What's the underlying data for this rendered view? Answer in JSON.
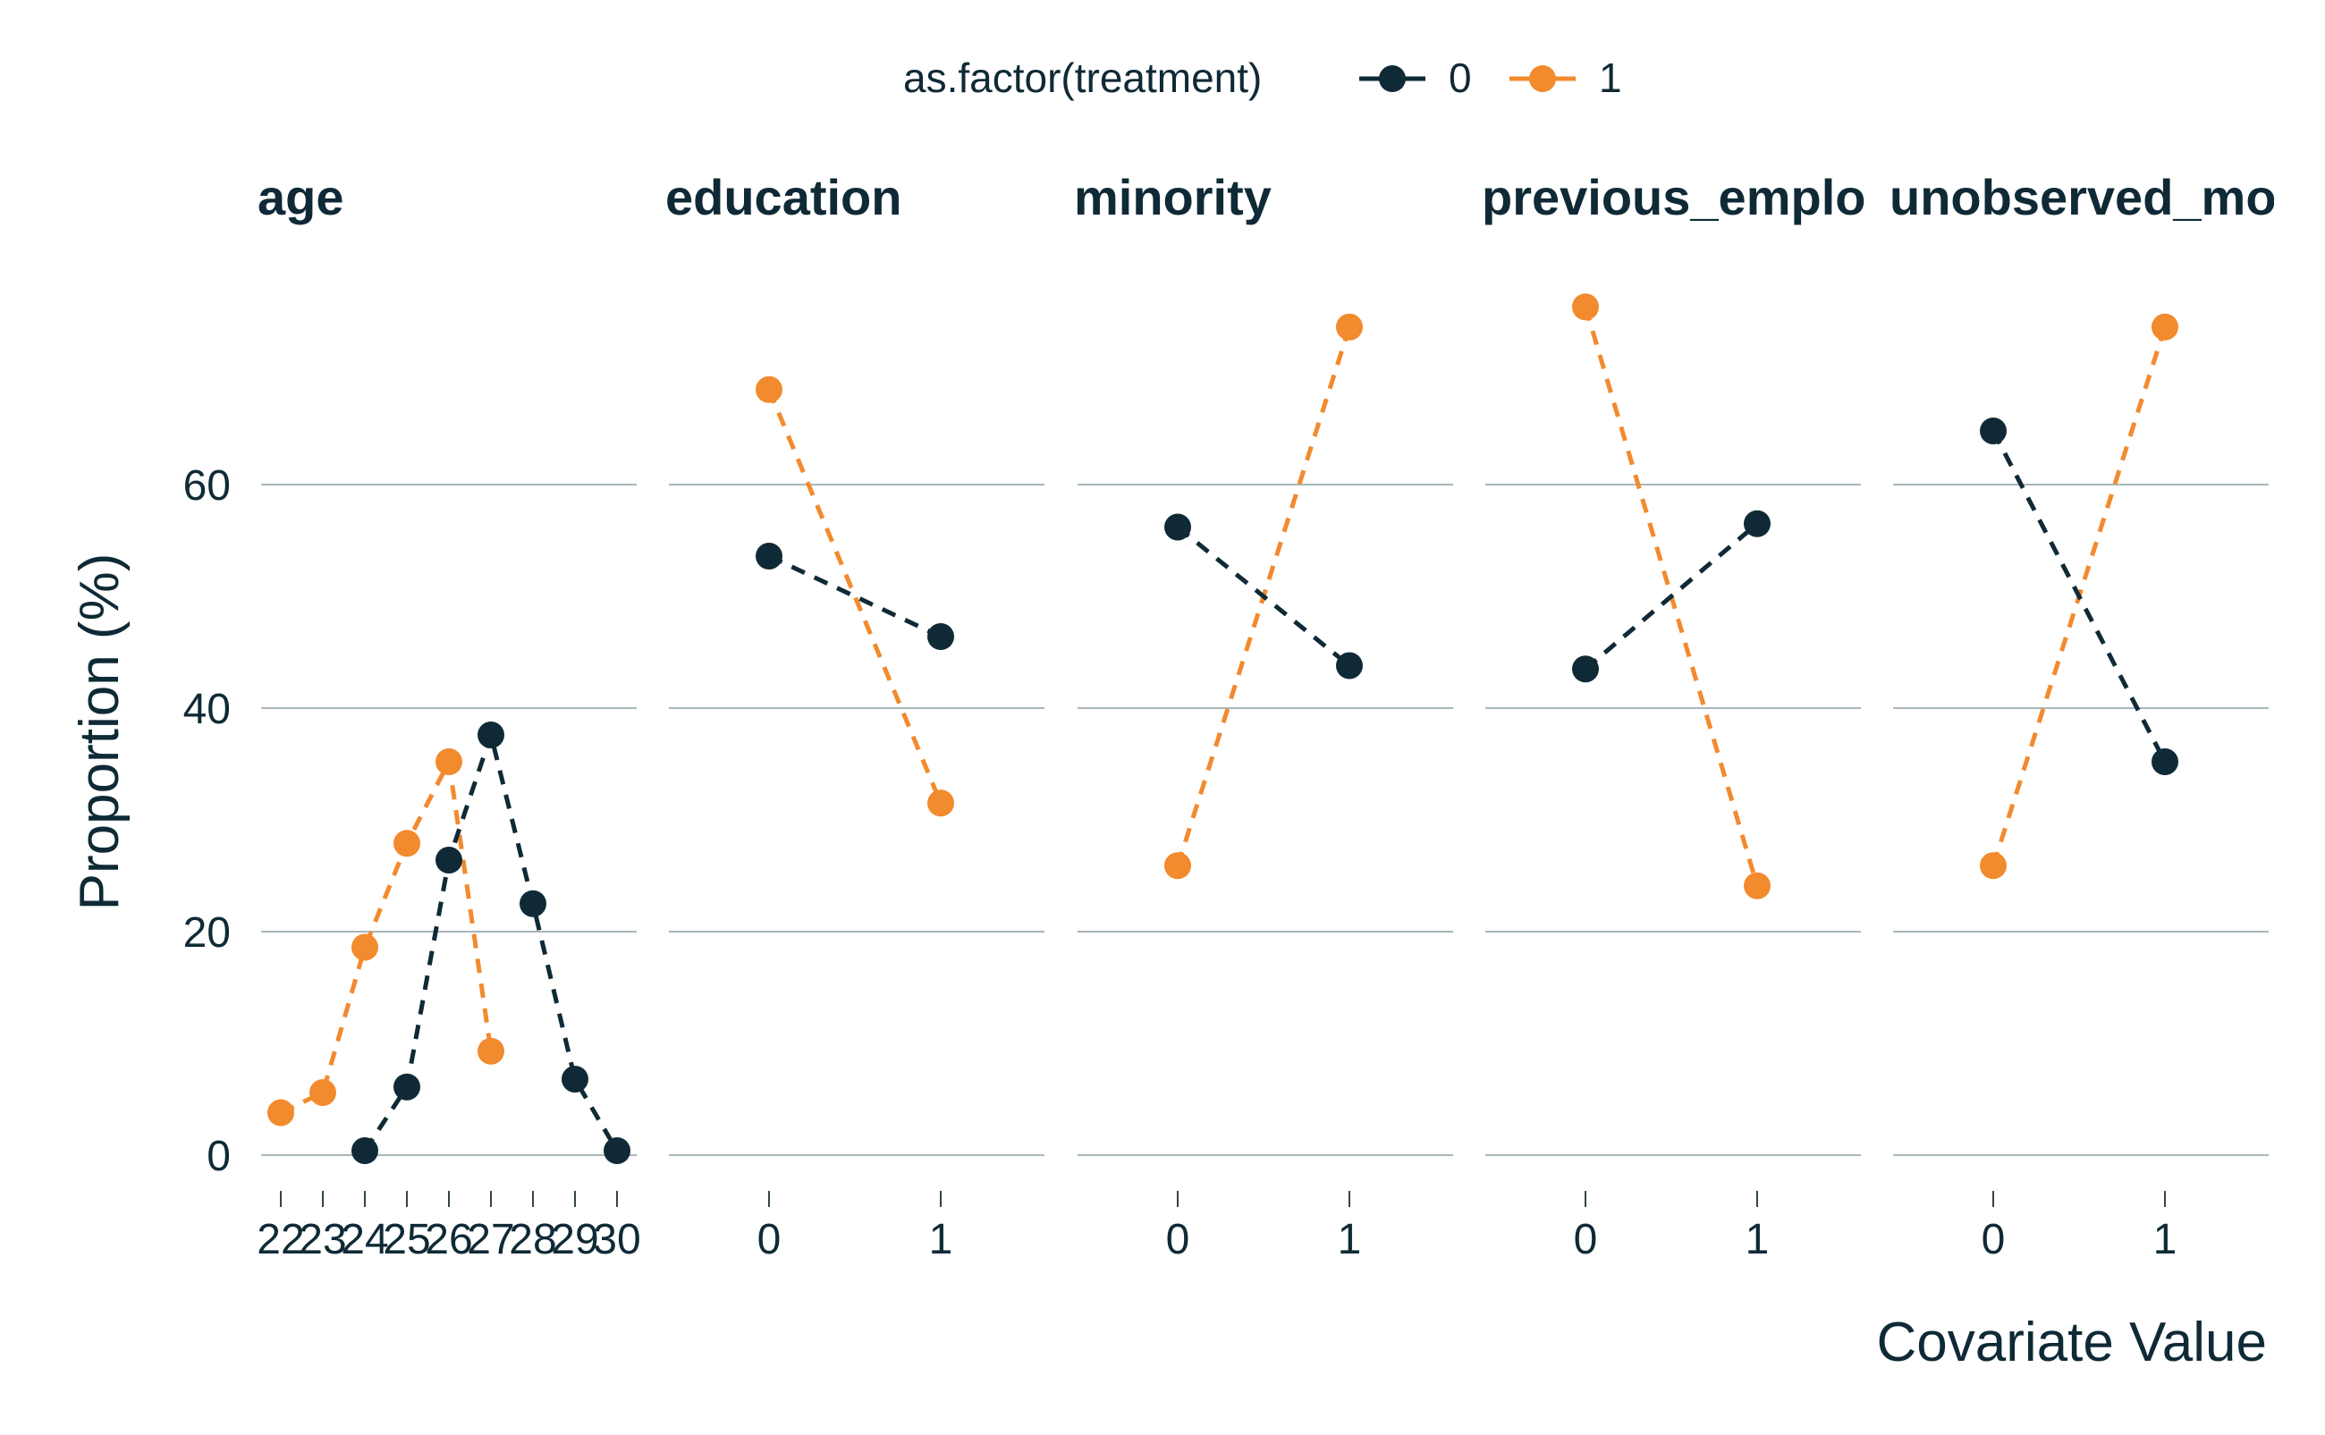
{
  "chart_data": {
    "type": "line",
    "legend": {
      "title": "as.factor(treatment)",
      "placement": "top",
      "entries": [
        {
          "label": "0",
          "color": "#0f2a36"
        },
        {
          "label": "1",
          "color": "#f28a2e"
        }
      ]
    },
    "xlabel": "Covariate Value",
    "ylabel": "Proportion (%)",
    "ylim": [
      0,
      80
    ],
    "yticks": [
      0,
      20,
      40,
      60
    ],
    "grid": true,
    "line_style": "dashed",
    "facets": [
      {
        "title": "age",
        "x_ticks": [
          "22",
          "23",
          "24",
          "25",
          "26",
          "27",
          "28",
          "29",
          "30"
        ],
        "series": [
          {
            "group": "0",
            "x": [
              "24",
              "25",
              "26",
              "27",
              "28",
              "29",
              "30"
            ],
            "y": [
              0.4,
              6.1,
              26.4,
              37.6,
              22.5,
              6.8,
              0.4
            ]
          },
          {
            "group": "1",
            "x": [
              "22",
              "23",
              "24",
              "25",
              "26",
              "27"
            ],
            "y": [
              3.8,
              5.6,
              18.6,
              27.9,
              35.2,
              9.3
            ]
          }
        ]
      },
      {
        "title": "education",
        "x_ticks": [
          "0",
          "1"
        ],
        "series": [
          {
            "group": "0",
            "x": [
              "0",
              "1"
            ],
            "y": [
              53.6,
              46.4
            ]
          },
          {
            "group": "1",
            "x": [
              "0",
              "1"
            ],
            "y": [
              68.5,
              31.5
            ]
          }
        ]
      },
      {
        "title": "minority",
        "x_ticks": [
          "0",
          "1"
        ],
        "series": [
          {
            "group": "0",
            "x": [
              "0",
              "1"
            ],
            "y": [
              56.2,
              43.8
            ]
          },
          {
            "group": "1",
            "x": [
              "0",
              "1"
            ],
            "y": [
              25.9,
              74.1
            ]
          }
        ]
      },
      {
        "title": "previous_emplo",
        "x_ticks": [
          "0",
          "1"
        ],
        "series": [
          {
            "group": "0",
            "x": [
              "0",
              "1"
            ],
            "y": [
              43.5,
              56.5
            ]
          },
          {
            "group": "1",
            "x": [
              "0",
              "1"
            ],
            "y": [
              75.9,
              24.1
            ]
          }
        ]
      },
      {
        "title": "unobserved_mo",
        "x_ticks": [
          "0",
          "1"
        ],
        "series": [
          {
            "group": "0",
            "x": [
              "0",
              "1"
            ],
            "y": [
              64.8,
              35.2
            ]
          },
          {
            "group": "1",
            "x": [
              "0",
              "1"
            ],
            "y": [
              25.9,
              74.1
            ]
          }
        ]
      }
    ]
  }
}
